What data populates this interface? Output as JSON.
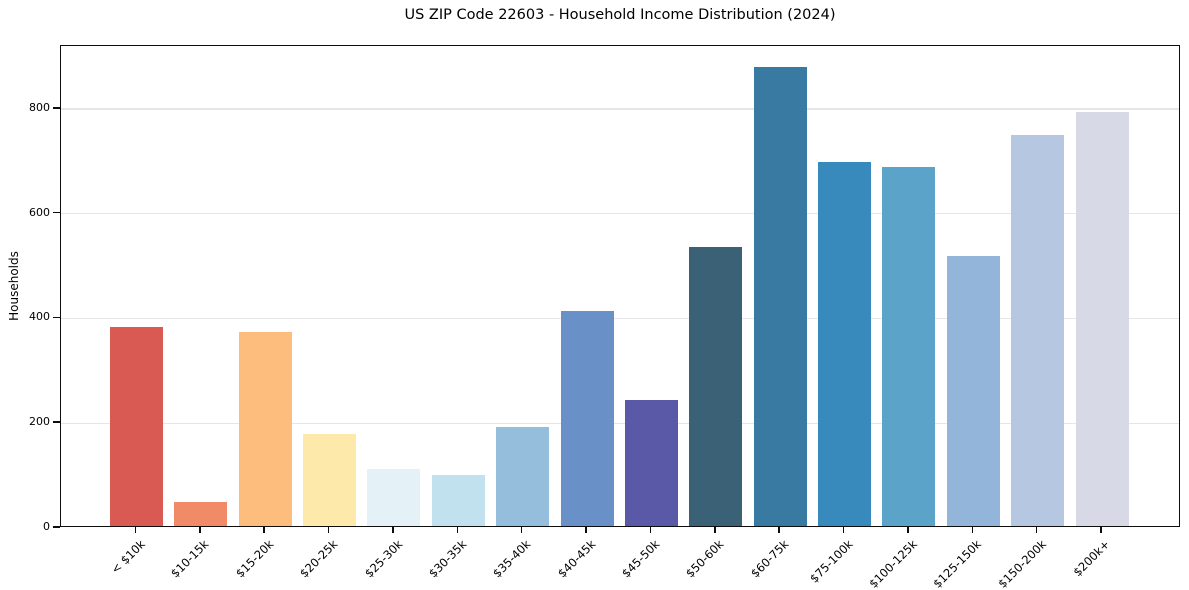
{
  "title": "US ZIP Code 22603 - Household Income Distribution (2024)",
  "chart_data": {
    "type": "bar",
    "title": "US ZIP Code 22603 - Household Income Distribution (2024)",
    "xlabel": "",
    "ylabel": "Households",
    "ylim": [
      0,
      920
    ],
    "yticks": [
      0,
      200,
      400,
      600,
      800
    ],
    "grid": "horizontal",
    "grid_color": "#e6e6e6",
    "legend": "none",
    "categories": [
      "< $10k",
      "$10-15k",
      "$15-20k",
      "$20-25k",
      "$25-30k",
      "$30-35k",
      "$35-40k",
      "$40-45k",
      "$45-50k",
      "$50-60k",
      "$60-75k",
      "$75-100k",
      "$100-125k",
      "$125-150k",
      "$150-200k",
      "$200k+"
    ],
    "values": [
      380,
      45,
      370,
      175,
      108,
      97,
      189,
      410,
      240,
      533,
      877,
      694,
      685,
      516,
      746,
      790
    ],
    "bar_colors": [
      "#d95a52",
      "#f18a67",
      "#fdbd7c",
      "#fde9a9",
      "#e4f1f6",
      "#c2e1ef",
      "#95bddc",
      "#6991c8",
      "#5a59a8",
      "#3a6176",
      "#387aa2",
      "#388abd",
      "#5ca3ca",
      "#92b5d9",
      "#b5c7e1",
      "#d7d9e7"
    ]
  }
}
